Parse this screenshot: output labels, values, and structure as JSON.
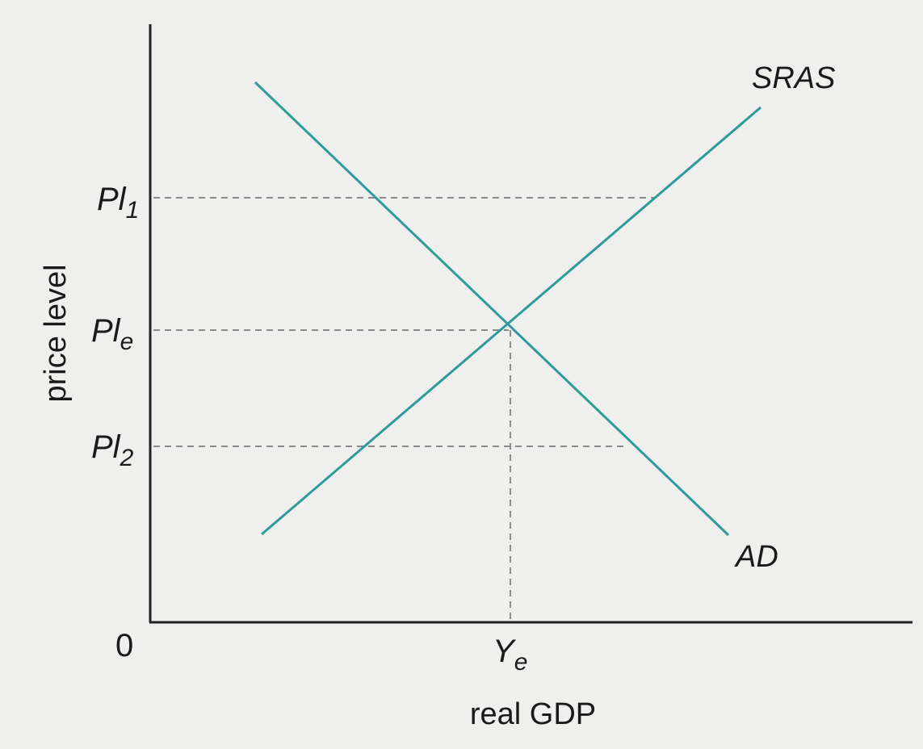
{
  "diagram": {
    "x_axis_label": "real GDP",
    "y_axis_label": "price level",
    "origin_label": "0",
    "curve_colors": {
      "line": "#2e9a9c",
      "axis": "#222222",
      "guide": "#8a8a8a"
    },
    "curves": {
      "sras": {
        "label": "SRAS"
      },
      "ad": {
        "label": "AD"
      }
    },
    "y_ticks": {
      "pl1": {
        "main": "Pl",
        "sub": "1"
      },
      "ple": {
        "main": "Pl",
        "sub": "e"
      },
      "pl2": {
        "main": "Pl",
        "sub": "2"
      }
    },
    "x_ticks": {
      "ye": {
        "main": "Y",
        "sub": "e"
      }
    }
  }
}
